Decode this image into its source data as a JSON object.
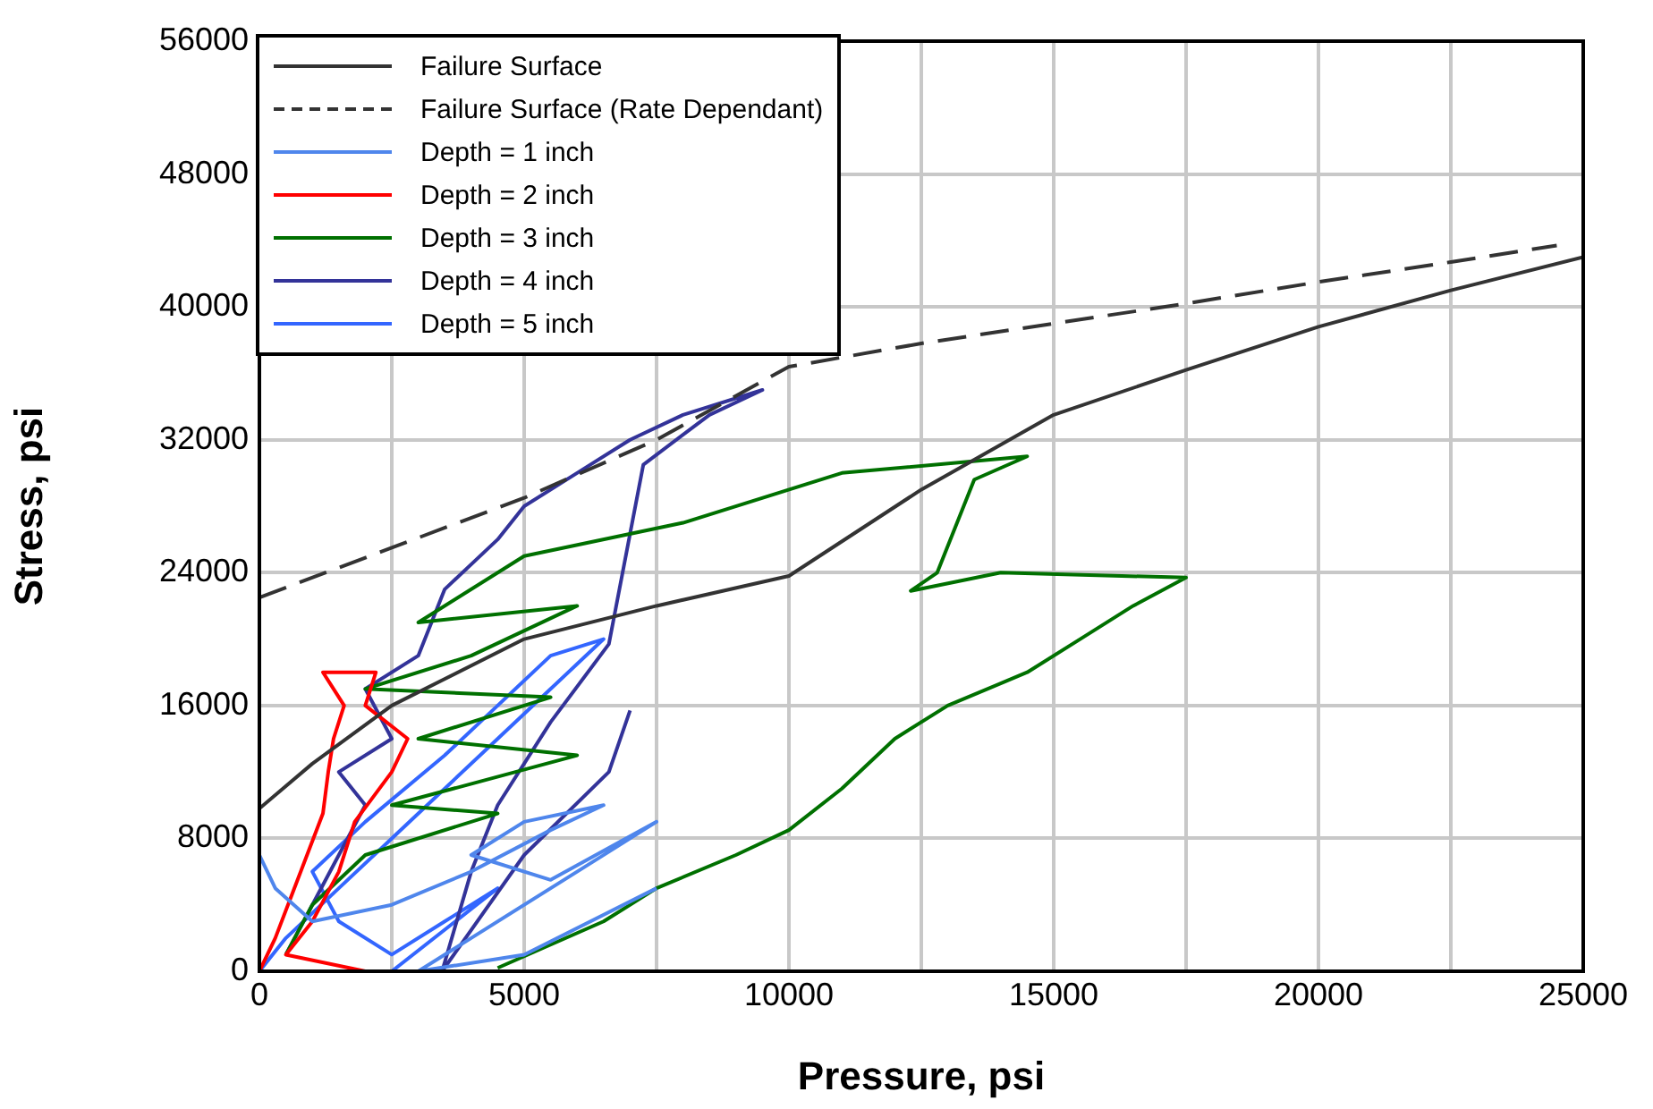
{
  "chart_data": {
    "type": "line",
    "xlabel": "Pressure, psi",
    "ylabel": "Stress, psi",
    "xlim": [
      0,
      25000
    ],
    "ylim": [
      0,
      56000
    ],
    "xticks": [
      0,
      {
        "value": 2500,
        "label": null
      },
      5000,
      {
        "value": 7500,
        "label": null
      },
      10000,
      {
        "value": 12500,
        "label": null
      },
      15000,
      {
        "value": 17500,
        "label": null
      },
      20000,
      {
        "value": 22500,
        "label": null
      },
      25000
    ],
    "yticks": [
      0,
      8000,
      16000,
      24000,
      32000,
      40000,
      48000,
      56000
    ],
    "grid": true,
    "legend": "top left",
    "marker": "none",
    "series": [
      {
        "name": "Failure Surface",
        "color": "#333333",
        "line_style": "solid",
        "x": [
          0,
          1000,
          2500,
          5000,
          7500,
          10000,
          12500,
          15000,
          17500,
          20000,
          22500,
          25000
        ],
        "values": [
          9800,
          12500,
          16000,
          20000,
          22000,
          23800,
          29000,
          33500,
          36200,
          38800,
          41000,
          43000
        ]
      },
      {
        "name": "Failure Surface (Rate Dependant)",
        "color": "#333333",
        "line_style": "dashed",
        "x": [
          0,
          2500,
          5000,
          7500,
          10000,
          12500,
          15000,
          17500,
          20000,
          22500,
          24500
        ],
        "values": [
          22500,
          25500,
          28500,
          32000,
          36400,
          37800,
          39000,
          40200,
          41500,
          42700,
          43700
        ]
      },
      {
        "name": "Depth = 1 inch",
        "color": "#4f86ec",
        "line_style": "solid",
        "x": [
          0,
          300,
          1000,
          2500,
          4000,
          5500,
          6500,
          5000,
          4000,
          5500,
          7500,
          6000,
          4000,
          3000,
          5000,
          7500
        ],
        "values": [
          7000,
          5000,
          3000,
          4000,
          6000,
          8500,
          10000,
          9000,
          7000,
          5500,
          9000,
          6000,
          2000,
          0,
          1000,
          5000
        ]
      },
      {
        "name": "Depth = 2 inch",
        "color": "#ff0000",
        "line_style": "solid",
        "x": [
          0,
          300,
          600,
          900,
          1200,
          1300,
          1400,
          1600,
          1200,
          2200,
          2000,
          2800,
          2500,
          1800,
          1500,
          1000,
          500,
          2000
        ],
        "values": [
          0,
          2000,
          4500,
          7000,
          9500,
          12000,
          14000,
          16000,
          18000,
          18000,
          16000,
          14000,
          12000,
          9000,
          6000,
          3000,
          1000,
          0
        ]
      },
      {
        "name": "Depth = 3 inch",
        "color": "#007000",
        "line_style": "solid",
        "x": [
          500,
          1000,
          2000,
          4500,
          2500,
          6000,
          3000,
          5500,
          2000,
          4000,
          6000,
          3000,
          5000,
          8000,
          11000,
          14500,
          13500,
          12800,
          12300,
          14000,
          17500,
          16500,
          15500,
          14500,
          13000,
          12000,
          11000,
          10000,
          9000,
          7500,
          6500,
          4500
        ],
        "values": [
          1000,
          4000,
          7000,
          9500,
          10000,
          13000,
          14000,
          16500,
          17000,
          19000,
          22000,
          21000,
          25000,
          27000,
          30000,
          31000,
          29600,
          24000,
          22900,
          24000,
          23700,
          22000,
          20000,
          18000,
          16000,
          14000,
          11000,
          8500,
          7000,
          5000,
          3000,
          200
        ]
      },
      {
        "name": "Depth = 4 inch",
        "color": "#333399",
        "line_style": "solid",
        "x": [
          500,
          1000,
          1500,
          2000,
          1500,
          2500,
          2000,
          3000,
          3500,
          4500,
          5000,
          6000,
          7000,
          8000,
          9500,
          8500,
          7250,
          6600,
          5500,
          4500,
          4000,
          3450,
          5000,
          6600,
          7000
        ],
        "values": [
          1000,
          4000,
          7000,
          10000,
          12000,
          14000,
          17000,
          19000,
          23000,
          26000,
          28000,
          30000,
          32000,
          33500,
          35000,
          33500,
          30500,
          19700,
          15000,
          10000,
          6000,
          0,
          7000,
          12000,
          15700
        ]
      },
      {
        "name": "Depth = 5 inch",
        "color": "#3366ff",
        "line_style": "solid",
        "x": [
          0,
          500,
          1500,
          2500,
          3500,
          4500,
          5500,
          6500,
          5500,
          4500,
          3500,
          2000,
          1000,
          1500,
          2500,
          3500,
          4500,
          2500
        ],
        "values": [
          0,
          2000,
          5000,
          8000,
          11000,
          14000,
          17000,
          20000,
          19000,
          16000,
          13000,
          9000,
          6000,
          3000,
          1000,
          3000,
          5000,
          0
        ]
      }
    ]
  }
}
